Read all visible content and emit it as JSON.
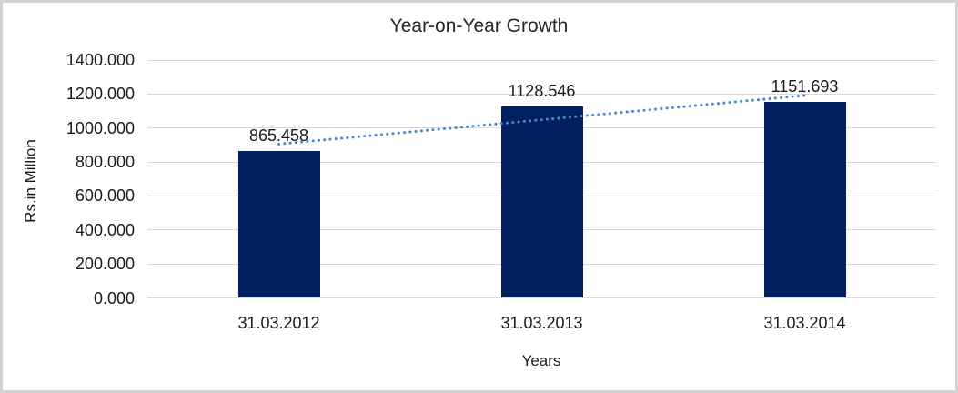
{
  "chart_data": {
    "type": "bar",
    "title": "Year-on-Year Growth",
    "xlabel": "Years",
    "ylabel": "Rs.in Million",
    "categories": [
      "31.03.2012",
      "31.03.2013",
      "31.03.2014"
    ],
    "values": [
      865.458,
      1128.546,
      1151.693
    ],
    "data_labels": [
      "865.458",
      "1128.546",
      "1151.693"
    ],
    "ylim": [
      0,
      1400
    ],
    "ytick_step": 200,
    "ytick_decimals": 3,
    "ytick_labels": [
      "0.000",
      "200.000",
      "400.000",
      "600.000",
      "800.000",
      "1000.000",
      "1200.000",
      "1400.000"
    ],
    "grid": true,
    "legend": false,
    "trendline": {
      "type": "linear",
      "style": "dotted"
    },
    "colors": {
      "bar": "#002060",
      "trendline": "#4a86d8",
      "gridline": "#d9d9d9",
      "text": "#1a1a1a",
      "border": "#d3d3d3",
      "background": "#ffffff"
    }
  }
}
